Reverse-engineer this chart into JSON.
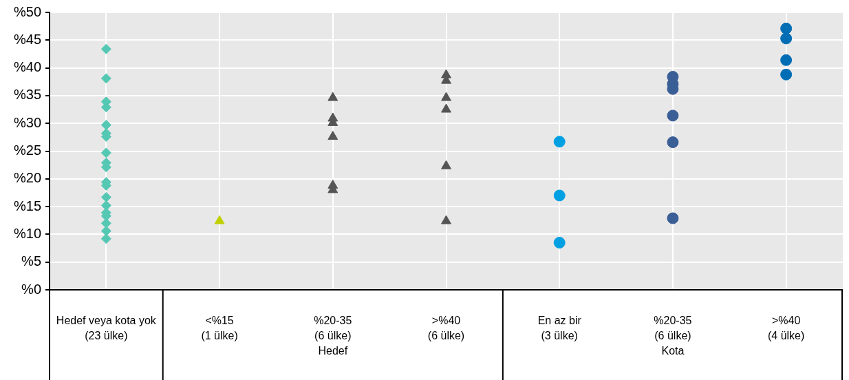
{
  "chart_data": {
    "type": "scatter",
    "categories": [
      "Hedef veya kota yok (23 ülke)",
      "<%15 (1 ülke)",
      "%20-35 (6 ülke) Hedef",
      ">%40 (6 ülke)",
      "En az bir (3 ülke)",
      "%20-35 (6 ülke) Kota",
      ">%40 (4 ülke)"
    ],
    "ylim": [
      0,
      50
    ],
    "yticks": [
      {
        "value": 0,
        "label": "%0"
      },
      {
        "value": 5,
        "label": "%5"
      },
      {
        "value": 10,
        "label": "%10"
      },
      {
        "value": 15,
        "label": "%15"
      },
      {
        "value": 20,
        "label": "%20"
      },
      {
        "value": 25,
        "label": "%25"
      },
      {
        "value": 30,
        "label": "%30"
      },
      {
        "value": 35,
        "label": "%35"
      },
      {
        "value": 40,
        "label": "%40"
      },
      {
        "value": 45,
        "label": "%45"
      },
      {
        "value": 50,
        "label": "%50"
      }
    ],
    "grid": true,
    "legend": false,
    "series": [
      {
        "color": "#55c8b4",
        "marker": "diamond",
        "x": [
          "Hedef veya kota yok (23 ülke)",
          "Hedef veya kota yok (23 ülke)",
          "Hedef veya kota yok (23 ülke)",
          "Hedef veya kota yok (23 ülke)",
          "Hedef veya kota yok (23 ülke)",
          "Hedef veya kota yok (23 ülke)",
          "Hedef veya kota yok (23 ülke)",
          "Hedef veya kota yok (23 ülke)",
          "Hedef veya kota yok (23 ülke)",
          "Hedef veya kota yok (23 ülke)",
          "Hedef veya kota yok (23 ülke)",
          "Hedef veya kota yok (23 ülke)",
          "Hedef veya kota yok (23 ülke)",
          "Hedef veya kota yok (23 ülke)",
          "Hedef veya kota yok (23 ülke)",
          "Hedef veya kota yok (23 ülke)",
          "Hedef veya kota yok (23 ülke)",
          "Hedef veya kota yok (23 ülke)",
          "Hedef veya kota yok (23 ülke)"
        ],
        "values": [
          43.4,
          38.1,
          33.9,
          32.9,
          29.7,
          28.2,
          27.6,
          24.7,
          22.9,
          22.1,
          19.4,
          18.8,
          16.7,
          15.2,
          13.9,
          13.3,
          12.0,
          10.6,
          9.2
        ]
      },
      {
        "color": "#c0d000",
        "marker": "triangle",
        "x": [
          "<%15 (1 ülke)"
        ],
        "values": [
          12.4
        ]
      },
      {
        "color": "#555555",
        "marker": "triangle",
        "x": [
          "%20-35 (6 ülke) Hedef",
          "%20-35 (6 ülke) Hedef",
          "%20-35 (6 ülke) Hedef",
          "%20-35 (6 ülke) Hedef",
          "%20-35 (6 ülke) Hedef",
          "%20-35 (6 ülke) Hedef"
        ],
        "values": [
          34.6,
          30.9,
          30.1,
          27.6,
          18.8,
          18.0
        ]
      },
      {
        "color": "#555555",
        "marker": "triangle",
        "x": [
          ">%40 (6 ülke)",
          ">%40 (6 ülke)",
          ">%40 (6 ülke)",
          ">%40 (6 ülke)",
          ">%40 (6 ülke)",
          ">%40 (6 ülke)"
        ],
        "values": [
          38.7,
          37.7,
          34.6,
          32.5,
          22.3,
          12.4
        ]
      },
      {
        "color": "#00a0e3",
        "marker": "circle",
        "x": [
          "En az bir (3 ülke)",
          "En az bir (3 ülke)",
          "En az bir (3 ülke)"
        ],
        "values": [
          26.7,
          17.0,
          8.5
        ]
      },
      {
        "color": "#3a5e96",
        "marker": "circle",
        "x": [
          "%20-35 (6 ülke) Kota",
          "%20-35 (6 ülke) Kota",
          "%20-35 (6 ülke) Kota",
          "%20-35 (6 ülke) Kota",
          "%20-35 (6 ülke) Kota",
          "%20-35 (6 ülke) Kota"
        ],
        "values": [
          38.4,
          37.1,
          36.2,
          31.4,
          26.6,
          12.9
        ]
      },
      {
        "color": "#006db5",
        "marker": "circle",
        "x": [
          ">%40 (4 ülke)",
          ">%40 (4 ülke)",
          ">%40 (4 ülke)",
          ">%40 (4 ülke)"
        ],
        "values": [
          47.1,
          45.3,
          41.4,
          38.8
        ]
      }
    ]
  }
}
